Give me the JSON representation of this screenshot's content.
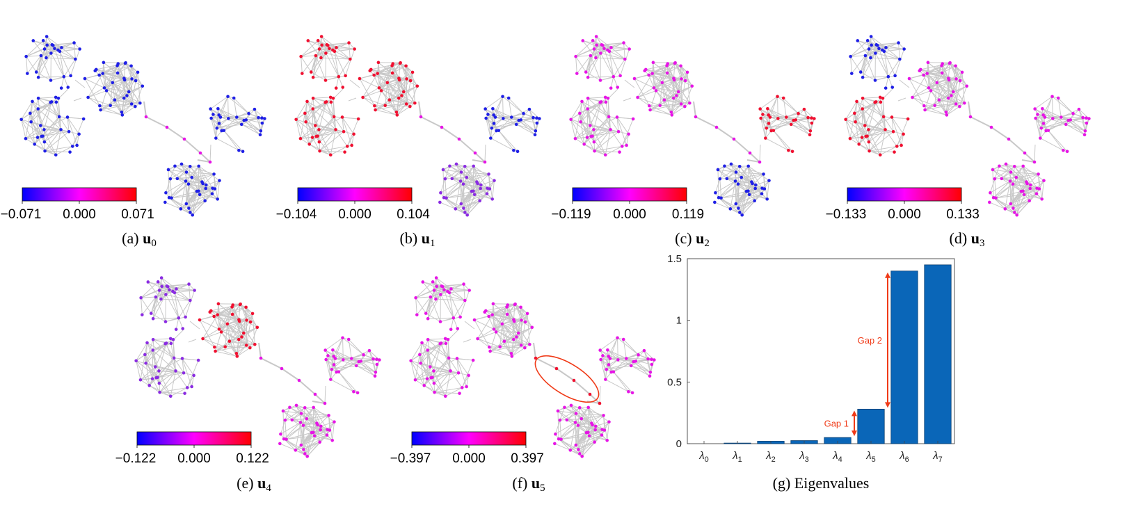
{
  "figure": {
    "panels": [
      {
        "id": "a",
        "caption_prefix": "(a)",
        "vector": "u",
        "index": "0",
        "colorbar_ticks": [
          "−0.071",
          "0.000",
          "0.071"
        ],
        "cluster_mode": [
          "blue",
          "blue",
          "blue",
          "blue",
          "blue"
        ]
      },
      {
        "id": "b",
        "caption_prefix": "(b)",
        "vector": "u",
        "index": "1",
        "colorbar_ticks": [
          "−0.104",
          "0.000",
          "0.104"
        ],
        "cluster_mode": [
          "red",
          "red",
          "red",
          "blue",
          "purple"
        ]
      },
      {
        "id": "c",
        "caption_prefix": "(c)",
        "vector": "u",
        "index": "2",
        "colorbar_ticks": [
          "−0.119",
          "0.000",
          "0.119"
        ],
        "cluster_mode": [
          "magenta",
          "magenta",
          "magenta",
          "red",
          "blue"
        ]
      },
      {
        "id": "d",
        "caption_prefix": "(d)",
        "vector": "u",
        "index": "3",
        "colorbar_ticks": [
          "−0.133",
          "0.000",
          "0.133"
        ],
        "cluster_mode": [
          "blue",
          "magenta",
          "red",
          "magenta",
          "magenta"
        ]
      },
      {
        "id": "e",
        "caption_prefix": "(e)",
        "vector": "u",
        "index": "4",
        "colorbar_ticks": [
          "−0.122",
          "0.000",
          "0.122"
        ],
        "cluster_mode": [
          "purple",
          "red",
          "purple",
          "magenta",
          "magenta"
        ]
      },
      {
        "id": "f",
        "caption_prefix": "(f)",
        "vector": "u",
        "index": "5",
        "colorbar_ticks": [
          "−0.397",
          "0.000",
          "0.397"
        ],
        "cluster_mode": [
          "magenta",
          "magenta",
          "magenta",
          "magenta",
          "magenta"
        ],
        "highlight_bridge": true
      }
    ],
    "colors": {
      "edge": "#c8c8c8",
      "blue": "#1f1fe6",
      "purple": "#8a2be2",
      "magenta": "#e615e6",
      "red": "#f01030",
      "bar": "#0a66b8",
      "annotation": "#f03a17"
    },
    "eigen_caption": "(g) Eigenvalues"
  },
  "chart_data": {
    "type": "bar",
    "categories": [
      "λ0",
      "λ1",
      "λ2",
      "λ3",
      "λ4",
      "λ5",
      "λ6",
      "λ7"
    ],
    "category_base": "λ",
    "category_subscripts": [
      "0",
      "1",
      "2",
      "3",
      "4",
      "5",
      "6",
      "7"
    ],
    "values": [
      0.0,
      0.005,
      0.02,
      0.025,
      0.05,
      0.28,
      1.4,
      1.45
    ],
    "ylim": [
      0,
      1.5
    ],
    "yticks": [
      0,
      0.5,
      1,
      1.5
    ],
    "ytick_labels": [
      "0",
      "0.5",
      "1",
      "1.5"
    ],
    "title": "",
    "xlabel": "",
    "ylabel": "",
    "annotations": [
      {
        "label": "Gap 1",
        "between": [
          "λ4",
          "λ5"
        ],
        "from": 0.05,
        "to": 0.28
      },
      {
        "label": "Gap 2",
        "between": [
          "λ5",
          "λ6"
        ],
        "from": 0.28,
        "to": 1.4
      }
    ]
  }
}
